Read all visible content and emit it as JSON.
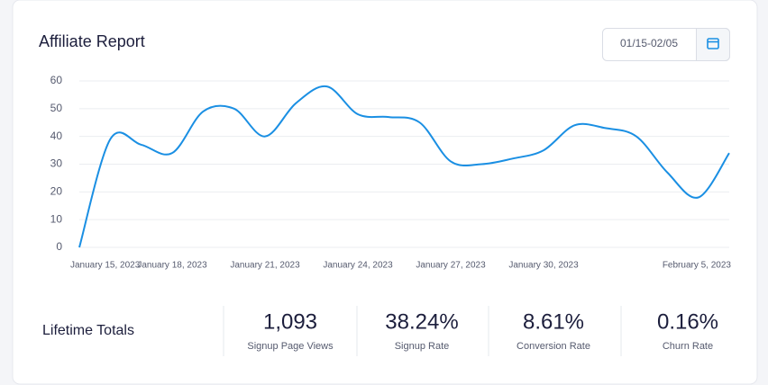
{
  "header": {
    "title": "Affiliate Report",
    "date_range": "01/15-02/05"
  },
  "chart_data": {
    "type": "line",
    "x": [
      "January 15, 2023",
      "January 16, 2023",
      "January 17, 2023",
      "January 18, 2023",
      "January 19, 2023",
      "January 20, 2023",
      "January 21, 2023",
      "January 22, 2023",
      "January 23, 2023",
      "January 24, 2023",
      "January 25, 2023",
      "January 26, 2023",
      "January 27, 2023",
      "January 28, 2023",
      "January 29, 2023",
      "January 30, 2023",
      "January 31, 2023",
      "February 1, 2023",
      "February 2, 2023",
      "February 3, 2023",
      "February 4, 2023",
      "February 5, 2023"
    ],
    "xticks": [
      "January 15, 2023",
      "January 18, 2023",
      "January 21, 2023",
      "January 24, 2023",
      "January 27, 2023",
      "January 30, 2023",
      "February 5, 2023"
    ],
    "series": [
      {
        "name": "Signup Page Views",
        "color": "#1a8fe3",
        "values": [
          0,
          39,
          37,
          34,
          49,
          50,
          40,
          52,
          58,
          48,
          47,
          45,
          31,
          30,
          32,
          35,
          44,
          43,
          40,
          27,
          18,
          34
        ]
      }
    ],
    "ylim": [
      0,
      60
    ],
    "yticks": [
      0,
      10,
      20,
      30,
      40,
      50,
      60
    ],
    "grid": true
  },
  "totals": {
    "label": "Lifetime Totals",
    "stats": [
      {
        "value": "1,093",
        "label": "Signup Page Views"
      },
      {
        "value": "38.24%",
        "label": "Signup Rate"
      },
      {
        "value": "8.61%",
        "label": "Conversion Rate"
      },
      {
        "value": "0.16%",
        "label": "Churn Rate"
      }
    ]
  }
}
